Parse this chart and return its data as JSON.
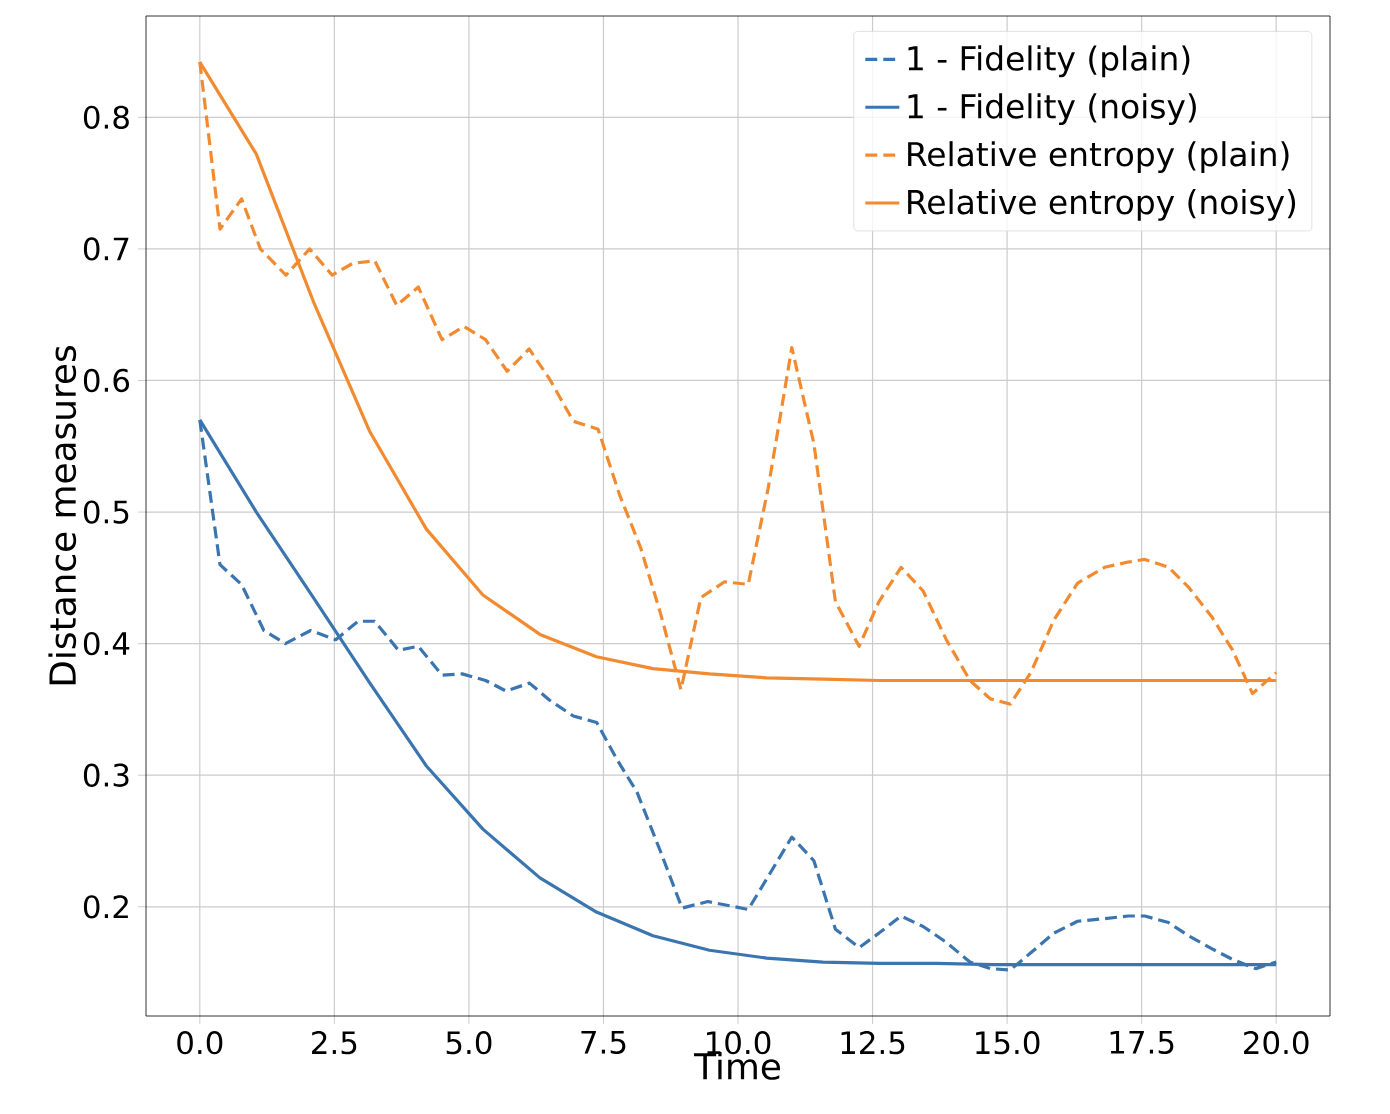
{
  "chart_data": {
    "type": "line",
    "xlabel": "Time",
    "ylabel": "Distance measures",
    "xlim": [
      -1,
      21
    ],
    "ylim": [
      0.117,
      0.877
    ],
    "xticks": [
      {
        "value": 0,
        "label": "0.0"
      },
      {
        "value": 2.5,
        "label": "2.5"
      },
      {
        "value": 5,
        "label": "5.0"
      },
      {
        "value": 7.5,
        "label": "7.5"
      },
      {
        "value": 10,
        "label": "10.0"
      },
      {
        "value": 12.5,
        "label": "12.5"
      },
      {
        "value": 15,
        "label": "15.0"
      },
      {
        "value": 17.5,
        "label": "17.5"
      },
      {
        "value": 20,
        "label": "20.0"
      }
    ],
    "yticks": [
      0.2,
      0.3,
      0.4,
      0.5,
      0.6,
      0.7,
      0.8
    ],
    "grid": true,
    "legend": "top right",
    "marker": "none",
    "series": [
      {
        "name": "1 - Fidelity (plain)",
        "color": "#3a75b0",
        "line_style": "dashed",
        "x": [
          0,
          0.375,
          0.775,
          1.19,
          1.59,
          2.06,
          2.525,
          2.94,
          3.25,
          3.69,
          4.06,
          4.5,
          4.875,
          5.31,
          5.69,
          6.125,
          6.5,
          6.94,
          7.375,
          7.75,
          8.125,
          8.56,
          8.96,
          9.44,
          10.19,
          10.56,
          11.0,
          11.41,
          11.81,
          12.25,
          12.62,
          13.03,
          13.44,
          13.87,
          14.31,
          14.69,
          15.06,
          15.44,
          15.87,
          16.31,
          16.81,
          17.25,
          17.56,
          18.0,
          18.37,
          18.81,
          19.19,
          19.62,
          20
        ],
        "values": [
          0.57,
          0.46,
          0.445,
          0.41,
          0.4,
          0.41,
          0.403,
          0.417,
          0.417,
          0.395,
          0.398,
          0.376,
          0.377,
          0.372,
          0.364,
          0.37,
          0.357,
          0.345,
          0.34,
          0.312,
          0.287,
          0.242,
          0.199,
          0.204,
          0.198,
          0.223,
          0.253,
          0.235,
          0.183,
          0.169,
          0.18,
          0.193,
          0.185,
          0.173,
          0.158,
          0.153,
          0.152,
          0.165,
          0.18,
          0.189,
          0.191,
          0.193,
          0.193,
          0.188,
          0.178,
          0.168,
          0.16,
          0.153,
          0.158
        ]
      },
      {
        "name": "1 - Fidelity (noisy)",
        "color": "#3a75b0",
        "line_style": "solid",
        "x": [
          0,
          1.05,
          2.11,
          3.16,
          4.21,
          5.26,
          6.32,
          7.37,
          8.42,
          9.47,
          10.53,
          11.58,
          12.63,
          13.68,
          14.74,
          15.79,
          16.84,
          17.89,
          18.95,
          20
        ],
        "values": [
          0.57,
          0.5,
          0.435,
          0.37,
          0.307,
          0.259,
          0.222,
          0.196,
          0.178,
          0.167,
          0.161,
          0.158,
          0.157,
          0.157,
          0.156,
          0.156,
          0.156,
          0.156,
          0.156,
          0.156
        ]
      },
      {
        "name": "Relative entropy (plain)",
        "color": "#f28a30",
        "line_style": "dashed",
        "x": [
          0,
          0.375,
          0.775,
          1.125,
          1.6,
          2.04,
          2.46,
          2.84,
          3.25,
          3.66,
          4.06,
          4.5,
          4.91,
          5.31,
          5.71,
          6.12,
          6.5,
          6.94,
          7.4,
          7.8,
          8.19,
          8.56,
          8.94,
          9.31,
          9.75,
          10.19,
          10.56,
          11.0,
          11.41,
          11.81,
          12.25,
          12.62,
          13.03,
          13.44,
          13.87,
          14.31,
          14.69,
          15.06,
          15.44,
          15.87,
          16.31,
          16.81,
          17.25,
          17.56,
          18.0,
          18.37,
          18.81,
          19.19,
          19.56,
          20
        ],
        "values": [
          0.842,
          0.715,
          0.738,
          0.7,
          0.68,
          0.7,
          0.68,
          0.689,
          0.691,
          0.657,
          0.671,
          0.631,
          0.641,
          0.631,
          0.607,
          0.624,
          0.601,
          0.569,
          0.563,
          0.513,
          0.473,
          0.423,
          0.365,
          0.435,
          0.447,
          0.445,
          0.518,
          0.625,
          0.552,
          0.432,
          0.398,
          0.432,
          0.458,
          0.44,
          0.403,
          0.372,
          0.358,
          0.354,
          0.378,
          0.418,
          0.446,
          0.458,
          0.462,
          0.464,
          0.458,
          0.443,
          0.42,
          0.395,
          0.362,
          0.378
        ]
      },
      {
        "name": "Relative entropy (noisy)",
        "color": "#f28a30",
        "line_style": "solid",
        "x": [
          0,
          1.05,
          2.11,
          3.16,
          4.21,
          5.26,
          6.32,
          7.37,
          8.42,
          9.47,
          10.53,
          11.58,
          12.63,
          13.68,
          14.74,
          15.79,
          16.84,
          17.89,
          18.95,
          20
        ],
        "values": [
          0.842,
          0.772,
          0.66,
          0.561,
          0.487,
          0.437,
          0.407,
          0.39,
          0.381,
          0.377,
          0.374,
          0.373,
          0.372,
          0.372,
          0.372,
          0.372,
          0.372,
          0.372,
          0.372,
          0.372
        ]
      }
    ]
  }
}
